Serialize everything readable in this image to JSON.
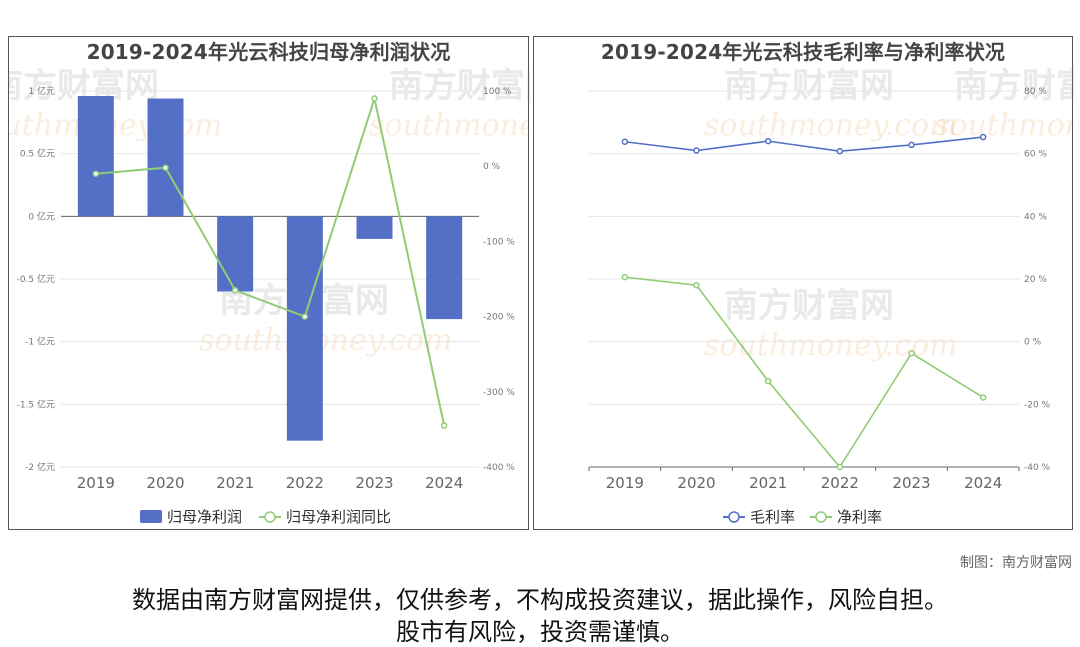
{
  "footer": {
    "credit": "制图：南方财富网",
    "disclaimer_line1": "数据由南方财富网提供，仅供参考，不构成投资建议，据此操作，风险自担。",
    "disclaimer_line2": "股市有风险，投资需谨慎。"
  },
  "watermark": {
    "cn": "南方财富网",
    "en": "southmoney.com"
  },
  "colors": {
    "bar": "#5470c6",
    "green": "#91cc75",
    "blue": "#5470c6"
  },
  "chart_data": [
    {
      "type": "bar",
      "title": "2019-2024年光云科技归母净利润状况",
      "categories": [
        "2019",
        "2020",
        "2021",
        "2022",
        "2023",
        "2024"
      ],
      "left_axis": {
        "ticks": [
          "1 亿元",
          "0.5 亿元",
          "0 亿元",
          "-0.5 亿元",
          "-1 亿元",
          "-1.5 亿元",
          "-2 亿元"
        ],
        "ylim": [
          -2,
          1
        ]
      },
      "right_axis": {
        "ticks": [
          "100 %",
          "0 %",
          "-100 %",
          "-200 %",
          "-300 %",
          "-400 %"
        ],
        "ylim": [
          -400,
          100
        ]
      },
      "series": [
        {
          "name": "归母净利润",
          "type": "bar",
          "axis": "left",
          "values": [
            0.96,
            0.94,
            -0.6,
            -1.79,
            -0.18,
            -0.82
          ]
        },
        {
          "name": "归母净利润同比",
          "type": "line",
          "axis": "right",
          "values": [
            -10,
            -2,
            -165,
            -200,
            90,
            -345
          ]
        }
      ],
      "legend_position": "bottom"
    },
    {
      "type": "line",
      "title": "2019-2024年光云科技毛利率与净利率状况",
      "categories": [
        "2019",
        "2020",
        "2021",
        "2022",
        "2023",
        "2024"
      ],
      "right_axis": {
        "ticks": [
          "80 %",
          "60 %",
          "40 %",
          "20 %",
          "0 %",
          "-20 %",
          "-40 %"
        ],
        "ylim": [
          -40,
          80
        ]
      },
      "series": [
        {
          "name": "毛利率",
          "values": [
            63.8,
            61.0,
            64.0,
            60.8,
            62.8,
            65.3
          ]
        },
        {
          "name": "净利率",
          "values": [
            20.6,
            18.0,
            -12.6,
            -40.0,
            -3.7,
            -17.8
          ]
        }
      ],
      "legend_position": "bottom"
    }
  ]
}
